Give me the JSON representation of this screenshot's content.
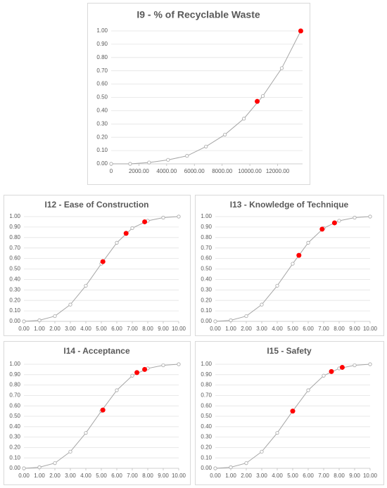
{
  "chart_data": [
    {
      "type": "line",
      "title": "I9 - % of Recyclable Waste",
      "x": [
        0,
        1367,
        2734,
        4101,
        5468,
        6835,
        8202,
        9569,
        10936,
        12303,
        13670
      ],
      "values": [
        0.0,
        0.0,
        0.01,
        0.03,
        0.06,
        0.13,
        0.22,
        0.34,
        0.51,
        0.72,
        1.0
      ],
      "color": "#a6a6a6",
      "highlight": {
        "x": [
          10530,
          13670
        ],
        "values": [
          0.47,
          1.0
        ],
        "color": "#ff0000"
      },
      "xlim": [
        0,
        13800
      ],
      "xticks": [
        0,
        {
          "value": 2000,
          "label": "2000.00"
        },
        {
          "value": 4000,
          "label": "4000.00"
        },
        {
          "value": 6000,
          "label": "6000.00"
        },
        {
          "value": 8000,
          "label": "8000.00"
        },
        {
          "value": 10000,
          "label": "10000.00"
        },
        {
          "value": 12000,
          "label": "12000.00"
        }
      ],
      "ylim": [
        0,
        1
      ],
      "yticks": [
        {
          "value": 0,
          "label": "0.00"
        },
        {
          "value": 0.1,
          "label": "0.10"
        },
        {
          "value": 0.2,
          "label": "0.20"
        },
        {
          "value": 0.3,
          "label": "0.30"
        },
        {
          "value": 0.4,
          "label": "0.40"
        },
        {
          "value": 0.5,
          "label": "0.50"
        },
        {
          "value": 0.6,
          "label": "0.60"
        },
        {
          "value": 0.7,
          "label": "0.70"
        },
        {
          "value": 0.8,
          "label": "0.80"
        },
        {
          "value": 0.9,
          "label": "0.90"
        },
        {
          "value": 1,
          "label": "1.00"
        }
      ],
      "grid": true
    },
    {
      "type": "line",
      "title": "I12 - Ease of Construction",
      "x": [
        0,
        1,
        2,
        3,
        4,
        5,
        6,
        7,
        8,
        9,
        10
      ],
      "values": [
        0.0,
        0.01,
        0.05,
        0.16,
        0.34,
        0.55,
        0.75,
        0.89,
        0.96,
        0.99,
        1.0
      ],
      "color": "#a6a6a6",
      "highlight": {
        "x": [
          5.1,
          6.6,
          7.8
        ],
        "values": [
          0.57,
          0.84,
          0.95
        ],
        "color": "#ff0000"
      },
      "xlim": [
        0,
        10
      ],
      "xticks": [
        {
          "value": 0,
          "label": "0.00"
        },
        {
          "value": 1,
          "label": "1.00"
        },
        {
          "value": 2,
          "label": "2.00"
        },
        {
          "value": 3,
          "label": "3.00"
        },
        {
          "value": 4,
          "label": "4.00"
        },
        {
          "value": 5,
          "label": "5.00"
        },
        {
          "value": 6,
          "label": "6.00"
        },
        {
          "value": 7,
          "label": "7.00"
        },
        {
          "value": 8,
          "label": "8.00"
        },
        {
          "value": 9,
          "label": "9.00"
        },
        {
          "value": 10,
          "label": "10.00"
        }
      ],
      "ylim": [
        0,
        1
      ],
      "yticks": [
        {
          "value": 0,
          "label": "0.00"
        },
        {
          "value": 0.1,
          "label": "0.10"
        },
        {
          "value": 0.2,
          "label": "0.20"
        },
        {
          "value": 0.3,
          "label": "0.30"
        },
        {
          "value": 0.4,
          "label": "0.40"
        },
        {
          "value": 0.5,
          "label": "0.50"
        },
        {
          "value": 0.6,
          "label": "0.60"
        },
        {
          "value": 0.7,
          "label": "0.70"
        },
        {
          "value": 0.8,
          "label": "0.80"
        },
        {
          "value": 0.9,
          "label": "0.90"
        },
        {
          "value": 1,
          "label": "1.00"
        }
      ],
      "grid": true
    },
    {
      "type": "line",
      "title": "I13 - Knowledge of Technique",
      "x": [
        0,
        1,
        2,
        3,
        4,
        5,
        6,
        7,
        8,
        9,
        10
      ],
      "values": [
        0.0,
        0.01,
        0.05,
        0.16,
        0.34,
        0.55,
        0.75,
        0.89,
        0.96,
        0.99,
        1.0
      ],
      "color": "#a6a6a6",
      "highlight": {
        "x": [
          5.4,
          6.9,
          7.7
        ],
        "values": [
          0.63,
          0.88,
          0.94
        ],
        "color": "#ff0000"
      },
      "xlim": [
        0,
        10
      ],
      "xticks": [
        {
          "value": 0,
          "label": "0.00"
        },
        {
          "value": 1,
          "label": "1.00"
        },
        {
          "value": 2,
          "label": "2.00"
        },
        {
          "value": 3,
          "label": "3.00"
        },
        {
          "value": 4,
          "label": "4.00"
        },
        {
          "value": 5,
          "label": "5.00"
        },
        {
          "value": 6,
          "label": "6.00"
        },
        {
          "value": 7,
          "label": "7.00"
        },
        {
          "value": 8,
          "label": "8.00"
        },
        {
          "value": 9,
          "label": "9.00"
        },
        {
          "value": 10,
          "label": "10.00"
        }
      ],
      "ylim": [
        0,
        1
      ],
      "yticks": [
        {
          "value": 0,
          "label": "0.00"
        },
        {
          "value": 0.1,
          "label": "0.10"
        },
        {
          "value": 0.2,
          "label": "0.20"
        },
        {
          "value": 0.3,
          "label": "0.30"
        },
        {
          "value": 0.4,
          "label": "0.40"
        },
        {
          "value": 0.5,
          "label": "0.50"
        },
        {
          "value": 0.6,
          "label": "0.60"
        },
        {
          "value": 0.7,
          "label": "0.70"
        },
        {
          "value": 0.8,
          "label": "0.80"
        },
        {
          "value": 0.9,
          "label": "0.90"
        },
        {
          "value": 1,
          "label": "1.00"
        }
      ],
      "grid": true
    },
    {
      "type": "line",
      "title": "I14 - Acceptance",
      "x": [
        0,
        1,
        2,
        3,
        4,
        5,
        6,
        7,
        8,
        9,
        10
      ],
      "values": [
        0.0,
        0.01,
        0.05,
        0.16,
        0.34,
        0.55,
        0.75,
        0.89,
        0.96,
        0.99,
        1.0
      ],
      "color": "#a6a6a6",
      "highlight": {
        "x": [
          5.1,
          7.3,
          7.8
        ],
        "values": [
          0.56,
          0.92,
          0.95
        ],
        "color": "#ff0000"
      },
      "xlim": [
        0,
        10
      ],
      "xticks": [
        {
          "value": 0,
          "label": "0.00"
        },
        {
          "value": 1,
          "label": "1.00"
        },
        {
          "value": 2,
          "label": "2.00"
        },
        {
          "value": 3,
          "label": "3.00"
        },
        {
          "value": 4,
          "label": "4.00"
        },
        {
          "value": 5,
          "label": "5.00"
        },
        {
          "value": 6,
          "label": "6.00"
        },
        {
          "value": 7,
          "label": "7.00"
        },
        {
          "value": 8,
          "label": "8.00"
        },
        {
          "value": 9,
          "label": "9.00"
        },
        {
          "value": 10,
          "label": "10.00"
        }
      ],
      "ylim": [
        0,
        1
      ],
      "yticks": [
        {
          "value": 0,
          "label": "0.00"
        },
        {
          "value": 0.1,
          "label": "0.10"
        },
        {
          "value": 0.2,
          "label": "0.20"
        },
        {
          "value": 0.3,
          "label": "0.30"
        },
        {
          "value": 0.4,
          "label": "0.40"
        },
        {
          "value": 0.5,
          "label": "0.50"
        },
        {
          "value": 0.6,
          "label": "0.60"
        },
        {
          "value": 0.7,
          "label": "0.70"
        },
        {
          "value": 0.8,
          "label": "0.80"
        },
        {
          "value": 0.9,
          "label": "0.90"
        },
        {
          "value": 1,
          "label": "1.00"
        }
      ],
      "grid": true
    },
    {
      "type": "line",
      "title": "I15 - Safety",
      "x": [
        0,
        1,
        2,
        3,
        4,
        5,
        6,
        7,
        8,
        9,
        10
      ],
      "values": [
        0.0,
        0.01,
        0.05,
        0.16,
        0.34,
        0.55,
        0.75,
        0.89,
        0.96,
        0.99,
        1.0
      ],
      "color": "#a6a6a6",
      "highlight": {
        "x": [
          5.0,
          7.5,
          8.2
        ],
        "values": [
          0.55,
          0.93,
          0.97
        ],
        "color": "#ff0000"
      },
      "xlim": [
        0,
        10
      ],
      "xticks": [
        {
          "value": 0,
          "label": "0.00"
        },
        {
          "value": 1,
          "label": "1.00"
        },
        {
          "value": 2,
          "label": "2.00"
        },
        {
          "value": 3,
          "label": "3.00"
        },
        {
          "value": 4,
          "label": "4.00"
        },
        {
          "value": 5,
          "label": "5.00"
        },
        {
          "value": 6,
          "label": "6.00"
        },
        {
          "value": 7,
          "label": "7.00"
        },
        {
          "value": 8,
          "label": "8.00"
        },
        {
          "value": 9,
          "label": "9.00"
        },
        {
          "value": 10,
          "label": "10.00"
        }
      ],
      "ylim": [
        0,
        1
      ],
      "yticks": [
        {
          "value": 0,
          "label": "0.00"
        },
        {
          "value": 0.1,
          "label": "0.10"
        },
        {
          "value": 0.2,
          "label": "0.20"
        },
        {
          "value": 0.3,
          "label": "0.30"
        },
        {
          "value": 0.4,
          "label": "0.40"
        },
        {
          "value": 0.5,
          "label": "0.50"
        },
        {
          "value": 0.6,
          "label": "0.60"
        },
        {
          "value": 0.7,
          "label": "0.70"
        },
        {
          "value": 0.8,
          "label": "0.80"
        },
        {
          "value": 0.9,
          "label": "0.90"
        },
        {
          "value": 1,
          "label": "1.00"
        }
      ],
      "grid": true
    }
  ]
}
